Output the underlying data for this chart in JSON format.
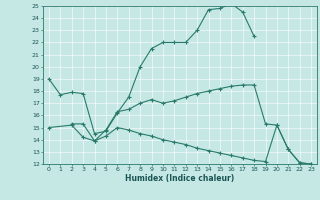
{
  "xlabel": "Humidex (Indice chaleur)",
  "bg_color": "#c5e8e5",
  "line_color": "#2a7a6a",
  "grid_color": "#ffffff",
  "ylim": [
    12,
    25
  ],
  "xlim": [
    -0.5,
    23.5
  ],
  "yticks": [
    12,
    13,
    14,
    15,
    16,
    17,
    18,
    19,
    20,
    21,
    22,
    23,
    24,
    25
  ],
  "xticks": [
    0,
    1,
    2,
    3,
    4,
    5,
    6,
    7,
    8,
    9,
    10,
    11,
    12,
    13,
    14,
    15,
    16,
    17,
    18,
    19,
    20,
    21,
    22,
    23
  ],
  "curve1_x": [
    0,
    1,
    2,
    3,
    4,
    5,
    6,
    7,
    8,
    9,
    10,
    11,
    12,
    13,
    14,
    15,
    16,
    17,
    18
  ],
  "curve1_y": [
    19.0,
    17.7,
    17.9,
    17.8,
    14.5,
    14.7,
    16.2,
    17.5,
    20.0,
    21.5,
    22.0,
    22.0,
    22.0,
    23.0,
    24.7,
    24.8,
    25.2,
    24.5,
    22.5
  ],
  "curve2_x": [
    2,
    3,
    4,
    5,
    6,
    7,
    8,
    9,
    10,
    11,
    12,
    13,
    14,
    15,
    16,
    17,
    18,
    19,
    20,
    21,
    22,
    23
  ],
  "curve2_y": [
    15.3,
    15.3,
    13.9,
    14.8,
    16.3,
    16.5,
    17.0,
    17.3,
    17.0,
    17.2,
    17.5,
    17.8,
    18.0,
    18.2,
    18.4,
    18.5,
    18.5,
    15.3,
    15.2,
    13.2,
    12.1,
    12.0
  ],
  "curve3_x": [
    0,
    2,
    3,
    4,
    5,
    6,
    7,
    8,
    9,
    10,
    11,
    12,
    13,
    14,
    15,
    16,
    17,
    18,
    19,
    20,
    21,
    22,
    23
  ],
  "curve3_y": [
    15.0,
    15.2,
    14.2,
    13.9,
    14.3,
    15.0,
    14.8,
    14.5,
    14.3,
    14.0,
    13.8,
    13.6,
    13.3,
    13.1,
    12.9,
    12.7,
    12.5,
    12.3,
    12.2,
    15.2,
    13.2,
    12.1,
    12.0
  ]
}
